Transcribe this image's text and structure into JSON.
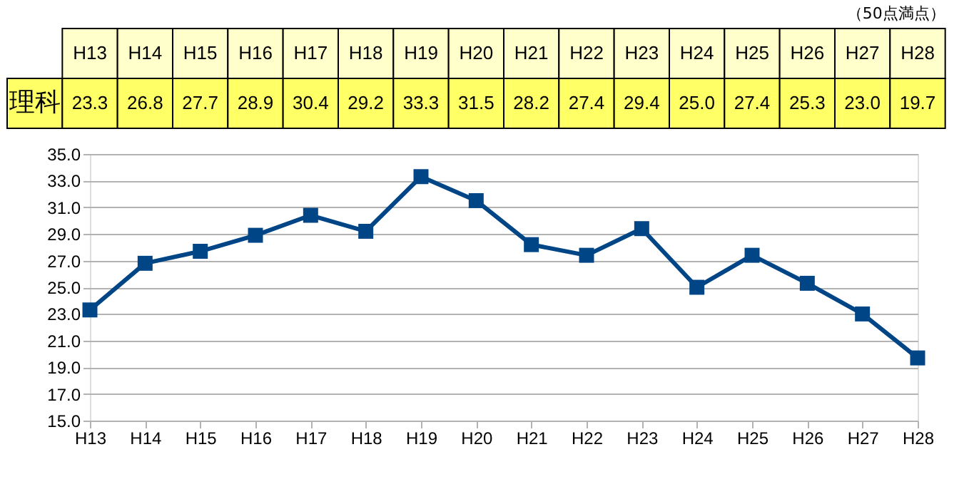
{
  "chart_data": {
    "type": "line",
    "annotations": [
      "（50点満点）"
    ],
    "categories": [
      "H13",
      "H14",
      "H15",
      "H16",
      "H17",
      "H18",
      "H19",
      "H20",
      "H21",
      "H22",
      "H23",
      "H24",
      "H25",
      "H26",
      "H27",
      "H28"
    ],
    "series": [
      {
        "name": "理科",
        "color": "#004586",
        "values": [
          23.3,
          26.8,
          27.7,
          28.9,
          30.4,
          29.2,
          33.3,
          31.5,
          28.2,
          27.4,
          29.4,
          25.0,
          27.4,
          25.3,
          23.0,
          19.7
        ],
        "value_labels": [
          "23.3",
          "26.8",
          "27.7",
          "28.9",
          "30.4",
          "29.2",
          "33.3",
          "31.5",
          "28.2",
          "27.4",
          "29.4",
          "25.0",
          "27.4",
          "25.3",
          "23.0",
          "19.7"
        ]
      }
    ],
    "ylim": [
      15.0,
      35.0
    ],
    "yticks": [
      {
        "value": 15,
        "label": "15.0"
      },
      {
        "value": 17,
        "label": "17.0"
      },
      {
        "value": 19,
        "label": "19.0"
      },
      {
        "value": 21,
        "label": "21.0"
      },
      {
        "value": 23,
        "label": "23.0"
      },
      {
        "value": 25,
        "label": "25.0"
      },
      {
        "value": 27,
        "label": "27.0"
      },
      {
        "value": 29,
        "label": "29.0"
      },
      {
        "value": 31,
        "label": "31.0"
      },
      {
        "value": 33,
        "label": "33.0"
      },
      {
        "value": 35,
        "label": "35.0"
      }
    ],
    "grid": "y",
    "marker": "square",
    "line_style": "solid"
  }
}
